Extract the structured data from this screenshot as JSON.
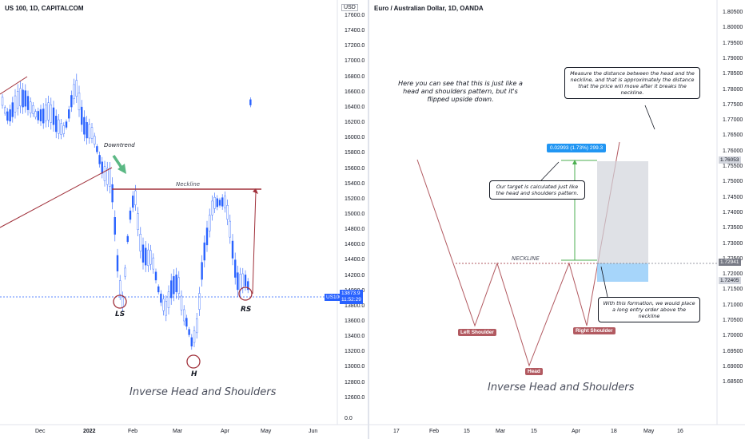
{
  "left": {
    "title": "US 100, 1D, CAPITALCOM",
    "currency": "USD",
    "y_ticks": [
      "17600.0",
      "17400.0",
      "17200.0",
      "17000.0",
      "16800.0",
      "16600.0",
      "16400.0",
      "16200.0",
      "16000.0",
      "15800.0",
      "15600.0",
      "15400.0",
      "15200.0",
      "15000.0",
      "14800.0",
      "14600.0",
      "14400.0",
      "14200.0",
      "14000.0",
      "13800.0",
      "13600.0",
      "13400.0",
      "13200.0",
      "13000.0",
      "12800.0",
      "12600.0",
      "0.0"
    ],
    "x_ticks": [
      "Dec",
      "2022",
      "Feb",
      "Mar",
      "Apr",
      "May",
      "Jun"
    ],
    "price_tag": {
      "symbol": "US100",
      "price": "13873.9",
      "time": "11:52:29"
    },
    "labels": {
      "downtrend": "Downtrend",
      "neckline": "Neckline",
      "ls": "LS",
      "h": "H",
      "rs": "RS"
    },
    "caption": "Inverse Head and Shoulders"
  },
  "right": {
    "title": "Euro / Australian Dollar, 1D, OANDA",
    "y_ticks": [
      "1.80500",
      "1.80000",
      "1.79500",
      "1.79000",
      "1.78500",
      "1.78000",
      "1.77500",
      "1.77000",
      "1.76500",
      "1.76000",
      "1.75500",
      "1.75000",
      "1.74500",
      "1.74000",
      "1.73500",
      "1.73000",
      "1.72500",
      "1.72000",
      "1.71500",
      "1.71000",
      "1.70500",
      "1.70000",
      "1.69500",
      "1.69000",
      "1.68500"
    ],
    "x_ticks": [
      "17",
      "Feb",
      "15",
      "Mar",
      "15",
      "Apr",
      "18",
      "May",
      "16"
    ],
    "price_tags": [
      {
        "value": "1.76053",
        "bg": "#d1d4dc",
        "fg": "#131722"
      },
      {
        "value": "1.72941",
        "bg": "#787b86",
        "fg": "#ffffff"
      },
      {
        "value": "1.72405",
        "bg": "#d1d4dc",
        "fg": "#131722"
      }
    ],
    "note_top": "Here you can see that this is just like a head and shoulders pattern, but it's flipped upside down.",
    "note_measure": "Measure the distance between the head and the neckline, and that is approximately the distance that the price will move after it breaks the neckline.",
    "note_target": "Our target is calculated just like the head and shoulders pattern.",
    "note_entry": "With this formation, we would place a long entry order above the neckline",
    "measure_label": "0.02993 (1.73%) 299.3",
    "neckline_label": "NECKLINE",
    "left_shoulder": "Left Shoulder",
    "head": "Head",
    "right_shoulder": "Right Shoulder",
    "caption": "Inverse Head and Shoulders"
  },
  "colors": {
    "up": "#2962ff",
    "down": "#2962ff",
    "neck": "#a0303a",
    "accent": "#4caf50"
  }
}
